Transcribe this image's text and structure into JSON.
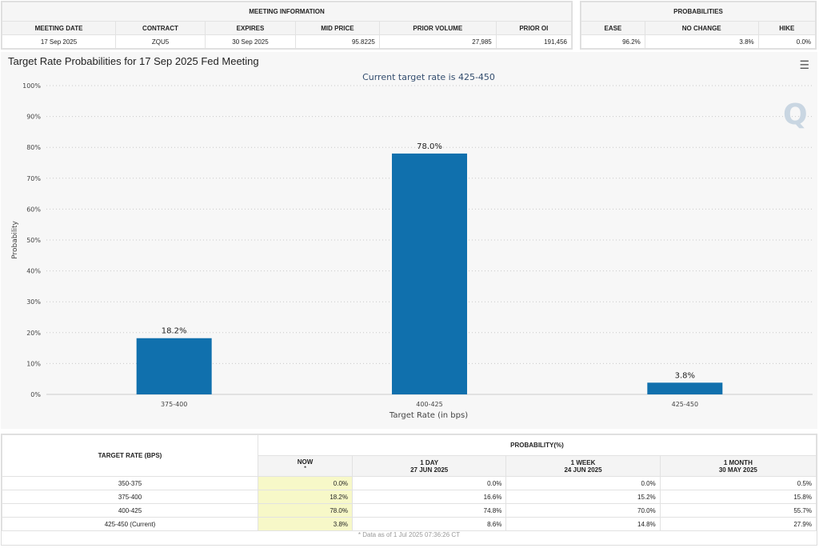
{
  "meeting_info": {
    "title": "MEETING INFORMATION",
    "headers": [
      "MEETING DATE",
      "CONTRACT",
      "EXPIRES",
      "MID PRICE",
      "PRIOR VOLUME",
      "PRIOR OI"
    ],
    "values": [
      "17 Sep 2025",
      "ZQU5",
      "30 Sep 2025",
      "95.8225",
      "27,985",
      "191,456"
    ]
  },
  "probabilities": {
    "title": "PROBABILITIES",
    "headers": [
      "EASE",
      "NO CHANGE",
      "HIKE"
    ],
    "values": [
      "96.2%",
      "3.8%",
      "0.0%"
    ]
  },
  "chart_data": {
    "type": "bar",
    "title": "Target Rate Probabilities for 17 Sep 2025 Fed Meeting",
    "subtitle": "Current target rate is 425-450",
    "categories": [
      "375-400",
      "400-425",
      "425-450"
    ],
    "values": [
      18.2,
      78.0,
      3.8
    ],
    "data_labels": [
      "18.2%",
      "78.0%",
      "3.8%"
    ],
    "xlabel": "Target Rate (in bps)",
    "ylabel": "Probability",
    "ylim": [
      0,
      100
    ],
    "yticks": [
      "0%",
      "10%",
      "20%",
      "30%",
      "40%",
      "50%",
      "60%",
      "70%",
      "80%",
      "90%",
      "100%"
    ],
    "grid": true,
    "bar_color": "#1070ad",
    "menu_icon": "hamburger-icon"
  },
  "table": {
    "col0": "TARGET RATE (BPS)",
    "group": "PROBABILITY(%)",
    "cols": [
      {
        "l1": "NOW",
        "l2": "*"
      },
      {
        "l1": "1 DAY",
        "l2": "27 JUN 2025"
      },
      {
        "l1": "1 WEEK",
        "l2": "24 JUN 2025"
      },
      {
        "l1": "1 MONTH",
        "l2": "30 MAY 2025"
      }
    ],
    "rows": [
      [
        "350-375",
        "0.0%",
        "0.0%",
        "0.0%",
        "0.5%"
      ],
      [
        "375-400",
        "18.2%",
        "16.6%",
        "15.2%",
        "15.8%"
      ],
      [
        "400-425",
        "78.0%",
        "74.8%",
        "70.0%",
        "55.7%"
      ],
      [
        "425-450 (Current)",
        "3.8%",
        "8.6%",
        "14.8%",
        "27.9%"
      ]
    ],
    "footnote": "* Data as of 1 Jul 2025 07:36:26 CT"
  }
}
